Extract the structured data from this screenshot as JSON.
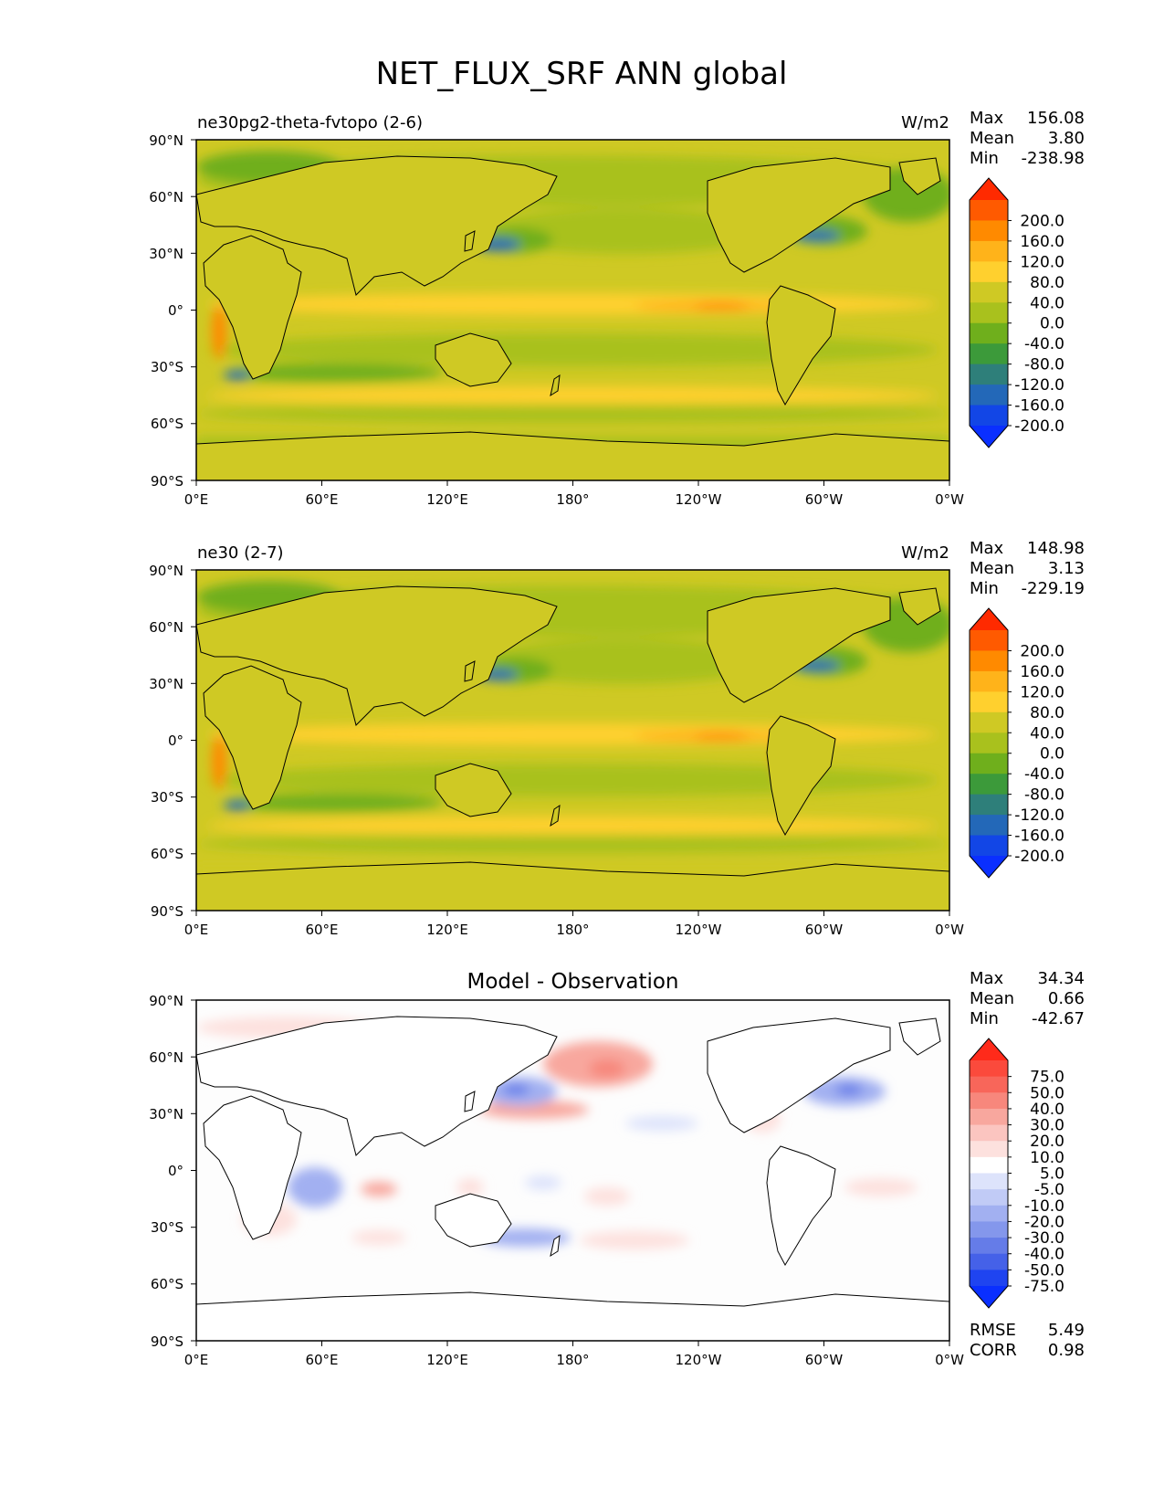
{
  "figure": {
    "title": "NET_FLUX_SRF ANN global"
  },
  "axes": {
    "lat_ticks": [
      "90°N",
      "60°N",
      "30°N",
      "0°",
      "30°S",
      "60°S",
      "90°S"
    ],
    "lon_ticks": [
      "0°E",
      "60°E",
      "120°E",
      "180°",
      "120°W",
      "60°W",
      "0°W"
    ]
  },
  "panels": [
    {
      "id": "test",
      "left_title": "ne30pg2-theta-fvtopo (2-6)",
      "center_title": "",
      "right_title": "W/m2",
      "stats": [
        {
          "label": "Max",
          "value": "156.08"
        },
        {
          "label": "Mean",
          "value": "3.80"
        },
        {
          "label": "Min",
          "value": "-238.98"
        }
      ],
      "colorbar": {
        "labels": [
          "200.0",
          "160.0",
          "120.0",
          "80.0",
          "40.0",
          "0.0",
          "-40.0",
          "-80.0",
          "-120.0",
          "-160.0",
          "-200.0"
        ],
        "colors": [
          "#ff2a00",
          "#ff5a00",
          "#ff8a00",
          "#ffb31a",
          "#ffd02e",
          "#cfc924",
          "#a9c11d",
          "#6faf1c",
          "#3c9a3a",
          "#2e7f7a",
          "#2368b8",
          "#1246e6",
          "#0a2fff"
        ]
      },
      "map_colors": {
        "base": "#cfc924",
        "land": "#cfc924",
        "neg1": "#a9c11d",
        "neg2": "#6faf1c",
        "neg3": "#3c9a3a",
        "neg4": "#2368b8",
        "pos1": "#ffd02e",
        "pos2": "#ffb31a",
        "pos3": "#ff8a00"
      }
    },
    {
      "id": "ref",
      "left_title": "ne30 (2-7)",
      "center_title": "",
      "right_title": "W/m2",
      "stats": [
        {
          "label": "Max",
          "value": "148.98"
        },
        {
          "label": "Mean",
          "value": "3.13"
        },
        {
          "label": "Min",
          "value": "-229.19"
        }
      ],
      "colorbar": {
        "labels": [
          "200.0",
          "160.0",
          "120.0",
          "80.0",
          "40.0",
          "0.0",
          "-40.0",
          "-80.0",
          "-120.0",
          "-160.0",
          "-200.0"
        ],
        "colors": [
          "#ff2a00",
          "#ff5a00",
          "#ff8a00",
          "#ffb31a",
          "#ffd02e",
          "#cfc924",
          "#a9c11d",
          "#6faf1c",
          "#3c9a3a",
          "#2e7f7a",
          "#2368b8",
          "#1246e6",
          "#0a2fff"
        ]
      },
      "map_colors": {
        "base": "#cfc924",
        "land": "#cfc924",
        "neg1": "#a9c11d",
        "neg2": "#6faf1c",
        "neg3": "#3c9a3a",
        "neg4": "#2368b8",
        "pos1": "#ffd02e",
        "pos2": "#ffb31a",
        "pos3": "#ff8a00"
      }
    },
    {
      "id": "diff",
      "left_title": "",
      "center_title": "Model - Observation",
      "right_title": "",
      "stats": [
        {
          "label": "Max",
          "value": "34.34"
        },
        {
          "label": "Mean",
          "value": "0.66"
        },
        {
          "label": "Min",
          "value": "-42.67"
        }
      ],
      "bottom_stats": [
        {
          "label": "RMSE",
          "value": "5.49"
        },
        {
          "label": "CORR",
          "value": "0.98"
        }
      ],
      "colorbar": {
        "labels": [
          "75.0",
          "50.0",
          "40.0",
          "30.0",
          "20.0",
          "10.0",
          "5.0",
          "-5.0",
          "-10.0",
          "-20.0",
          "-30.0",
          "-40.0",
          "-50.0",
          "-75.0"
        ],
        "colors": [
          "#ff2a1a",
          "#fb4a3c",
          "#f8665a",
          "#f7877c",
          "#f8a79e",
          "#fbc5c0",
          "#fde1de",
          "#ffffff",
          "#dde3fb",
          "#c1cbf6",
          "#a2b0f1",
          "#8497ec",
          "#657ce8",
          "#4561e8",
          "#1f44f0",
          "#0a2fff"
        ]
      },
      "map_colors": {
        "base": "#fdfdfd",
        "land": "#ffffff",
        "neg1": "#dde3fb",
        "neg2": "#a2b0f1",
        "neg3": "#8497ec",
        "neg4": "#657ce8",
        "pos1": "#fde1de",
        "pos2": "#f8a79e",
        "pos3": "#f7877c"
      }
    }
  ]
}
